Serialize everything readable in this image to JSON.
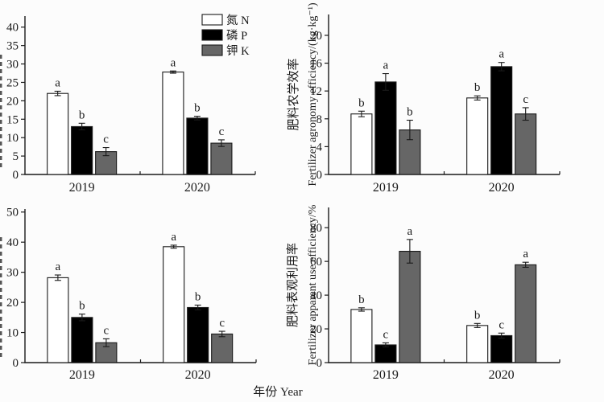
{
  "figure": {
    "xlabel": "年份 Year",
    "axis_color": "#1a1a1a",
    "background": "#fcfcfc",
    "legend": {
      "position": "top-right-inside-first-panel",
      "entries": [
        {
          "label": "氮 N",
          "color": "#ffffff"
        },
        {
          "label": "磷 P",
          "color": "#000000"
        },
        {
          "label": "钾 K",
          "color": "#666666"
        }
      ]
    }
  },
  "chart_data": [
    {
      "type": "bar",
      "panel": "top-left",
      "categories": [
        "2019",
        "2020"
      ],
      "series": [
        {
          "name": "氮 N",
          "fill": "#ffffff",
          "values": [
            22.0,
            27.8
          ],
          "errors": [
            0.6,
            0.3
          ],
          "sig_letters": [
            "a",
            "a"
          ]
        },
        {
          "name": "磷 P",
          "fill": "#000000",
          "values": [
            13.0,
            15.3
          ],
          "errors": [
            0.9,
            0.5
          ],
          "sig_letters": [
            "b",
            "b"
          ]
        },
        {
          "name": "钾 K",
          "fill": "#666666",
          "values": [
            6.2,
            8.5
          ],
          "errors": [
            1.1,
            0.9
          ],
          "sig_letters": [
            "c",
            "c"
          ]
        }
      ],
      "ylabel_cn": "",
      "ylabel_en": "",
      "ylabel_clipped_at_left_edge": true,
      "ylim": [
        0,
        43
      ],
      "yticks": [
        0,
        5,
        10,
        15,
        20,
        25,
        30,
        35,
        40
      ],
      "grid": false,
      "has_legend": true
    },
    {
      "type": "bar",
      "panel": "top-right",
      "categories": [
        "2019",
        "2020"
      ],
      "series": [
        {
          "name": "氮 N",
          "fill": "#ffffff",
          "values": [
            8.7,
            11.0
          ],
          "errors": [
            0.4,
            0.3
          ],
          "sig_letters": [
            "b",
            "b"
          ]
        },
        {
          "name": "磷 P",
          "fill": "#000000",
          "values": [
            13.3,
            15.5
          ],
          "errors": [
            1.2,
            0.6
          ],
          "sig_letters": [
            "a",
            "a"
          ]
        },
        {
          "name": "钾 K",
          "fill": "#666666",
          "values": [
            6.4,
            8.7
          ],
          "errors": [
            1.4,
            0.9
          ],
          "sig_letters": [
            "b",
            "c"
          ]
        }
      ],
      "ylabel_cn": "肥料农学效率",
      "ylabel_en": "Fertilizer agronomy efficiency/(kg·kg⁻¹)",
      "ylabel_clipped_at_left_edge": false,
      "ylim": [
        0,
        23
      ],
      "yticks": [
        0,
        4,
        8,
        12,
        16,
        20
      ],
      "grid": false,
      "has_legend": false
    },
    {
      "type": "bar",
      "panel": "bottom-left",
      "categories": [
        "2019",
        "2020"
      ],
      "series": [
        {
          "name": "氮 N",
          "fill": "#ffffff",
          "values": [
            28.2,
            38.5
          ],
          "errors": [
            0.9,
            0.5
          ],
          "sig_letters": [
            "a",
            "a"
          ]
        },
        {
          "name": "磷 P",
          "fill": "#000000",
          "values": [
            15.0,
            18.3
          ],
          "errors": [
            1.1,
            0.8
          ],
          "sig_letters": [
            "b",
            "b"
          ]
        },
        {
          "name": "钾 K",
          "fill": "#666666",
          "values": [
            6.6,
            9.5
          ],
          "errors": [
            1.3,
            0.9
          ],
          "sig_letters": [
            "c",
            "c"
          ]
        }
      ],
      "ylabel_cn": "",
      "ylabel_en": "",
      "ylabel_clipped_at_left_edge": true,
      "ylim": [
        0,
        51
      ],
      "yticks": [
        0,
        10,
        20,
        30,
        40,
        50
      ],
      "grid": false,
      "has_legend": false
    },
    {
      "type": "bar",
      "panel": "bottom-right",
      "categories": [
        "2019",
        "2020"
      ],
      "series": [
        {
          "name": "氮 N",
          "fill": "#ffffff",
          "values": [
            31.5,
            22.0
          ],
          "errors": [
            1.0,
            1.2
          ],
          "sig_letters": [
            "b",
            "b"
          ]
        },
        {
          "name": "磷 P",
          "fill": "#000000",
          "values": [
            10.5,
            16.0
          ],
          "errors": [
            1.2,
            1.5
          ],
          "sig_letters": [
            "c",
            "c"
          ]
        },
        {
          "name": "钾 K",
          "fill": "#666666",
          "values": [
            66.0,
            58.0
          ],
          "errors": [
            7.0,
            1.5
          ],
          "sig_letters": [
            "a",
            "a"
          ]
        }
      ],
      "ylabel_cn": "肥料表观利用率",
      "ylabel_en": "Fertilizer apparent use efficiency/%",
      "ylabel_clipped_at_left_edge": false,
      "ylim": [
        0,
        92
      ],
      "yticks": [
        0,
        20,
        40,
        60,
        80
      ],
      "grid": false,
      "has_legend": false
    }
  ]
}
